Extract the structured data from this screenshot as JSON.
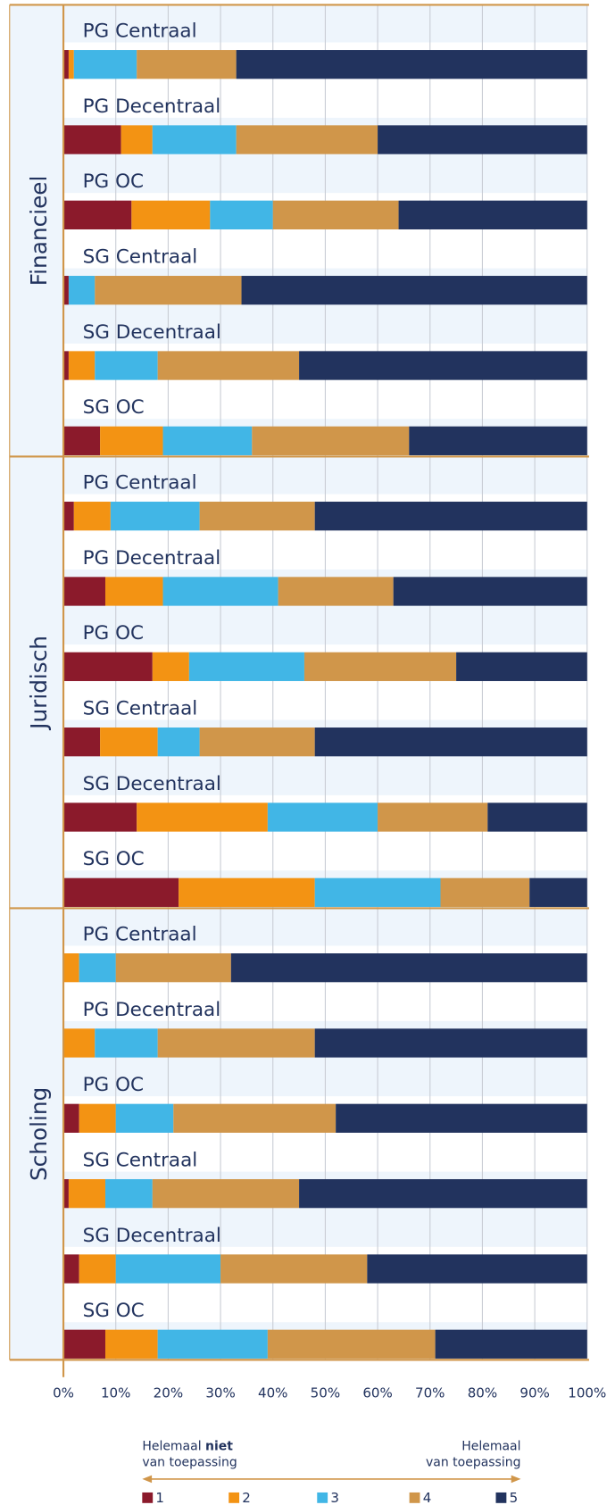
{
  "chart_data": {
    "type": "bar",
    "orientation": "horizontal",
    "stacked": true,
    "groups": [
      {
        "name": "Financieel",
        "categories": [
          "PG Centraal",
          "PG Decentraal",
          "PG OC",
          "SG Centraal",
          "SG Decentraal",
          "SG OC"
        ]
      },
      {
        "name": "Juridisch",
        "categories": [
          "PG Centraal",
          "PG Decentraal",
          "PG OC",
          "SG Centraal",
          "SG Decentraal",
          "SG OC"
        ]
      },
      {
        "name": "Scholing",
        "categories": [
          "PG Centraal",
          "PG Decentraal",
          "PG OC",
          "SG Centraal",
          "SG Decentraal",
          "SG OC"
        ]
      }
    ],
    "series": [
      {
        "name": "1",
        "color": "#8b1a2b",
        "values": [
          1,
          11,
          13,
          1,
          1,
          7,
          2,
          8,
          17,
          7,
          14,
          22,
          0,
          0,
          3,
          1,
          3,
          8
        ]
      },
      {
        "name": "2",
        "color": "#f39313",
        "values": [
          1,
          6,
          15,
          0,
          5,
          12,
          7,
          11,
          7,
          11,
          25,
          26,
          3,
          6,
          7,
          7,
          7,
          10
        ]
      },
      {
        "name": "3",
        "color": "#41b6e6",
        "values": [
          12,
          16,
          12,
          5,
          12,
          17,
          17,
          22,
          22,
          8,
          21,
          24,
          7,
          12,
          11,
          9,
          20,
          21
        ]
      },
      {
        "name": "4",
        "color": "#d0964a",
        "values": [
          19,
          27,
          24,
          28,
          27,
          30,
          22,
          22,
          29,
          22,
          21,
          17,
          22,
          30,
          31,
          28,
          28,
          32
        ]
      },
      {
        "name": "5",
        "color": "#22335e",
        "values": [
          67,
          40,
          36,
          66,
          55,
          34,
          52,
          37,
          25,
          52,
          19,
          11,
          68,
          52,
          48,
          55,
          42,
          29
        ]
      }
    ],
    "xlim": [
      0,
      100
    ],
    "xticks": [
      {
        "value": 0,
        "label": "0%"
      },
      {
        "value": 10,
        "label": "10%"
      },
      {
        "value": 20,
        "label": "20%"
      },
      {
        "value": 30,
        "label": "30%"
      },
      {
        "value": 40,
        "label": "40%"
      },
      {
        "value": 50,
        "label": "50%"
      },
      {
        "value": 60,
        "label": "60%"
      },
      {
        "value": 70,
        "label": "70%"
      },
      {
        "value": 80,
        "label": "80%"
      },
      {
        "value": 90,
        "label": "90%"
      },
      {
        "value": 100,
        "label": "100%"
      }
    ],
    "grid": true,
    "scale_left": {
      "line1_a": "Helemaal",
      "line1_b": "niet",
      "line2": "van toepassing"
    },
    "scale_right": {
      "line1": "Helemaal",
      "line2": "van toepassing"
    }
  }
}
